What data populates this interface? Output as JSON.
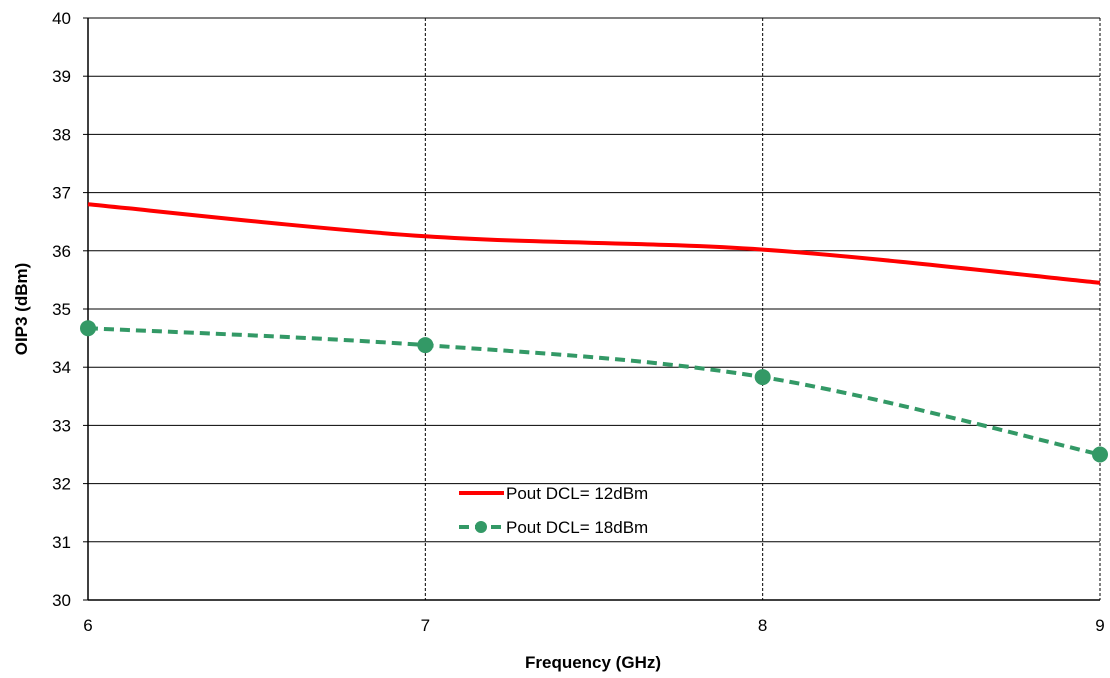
{
  "chart_data": {
    "type": "line",
    "title": "",
    "xlabel": "Frequency (GHz)",
    "ylabel": "OIP3  (dBm)",
    "xlim": [
      6,
      9
    ],
    "ylim": [
      30,
      40
    ],
    "x_ticks": [
      6,
      7,
      8,
      9
    ],
    "y_ticks": [
      30,
      31,
      32,
      33,
      34,
      35,
      36,
      37,
      38,
      39,
      40
    ],
    "grid": {
      "horizontal": "solid",
      "vertical": "dashed"
    },
    "legend_position": "bottom-center",
    "series": [
      {
        "name": "Pout DCL= 12dBm",
        "color": "#ff0000",
        "line_style": "solid",
        "marker": "none",
        "x": [
          6,
          7,
          8,
          9
        ],
        "y": [
          36.8,
          36.25,
          36.02,
          35.45
        ]
      },
      {
        "name": "Pout DCL= 18dBm",
        "color": "#339966",
        "line_style": "dashed",
        "marker": "circle",
        "x": [
          6,
          7,
          8,
          9
        ],
        "y": [
          34.67,
          34.38,
          33.83,
          32.5
        ]
      }
    ]
  }
}
